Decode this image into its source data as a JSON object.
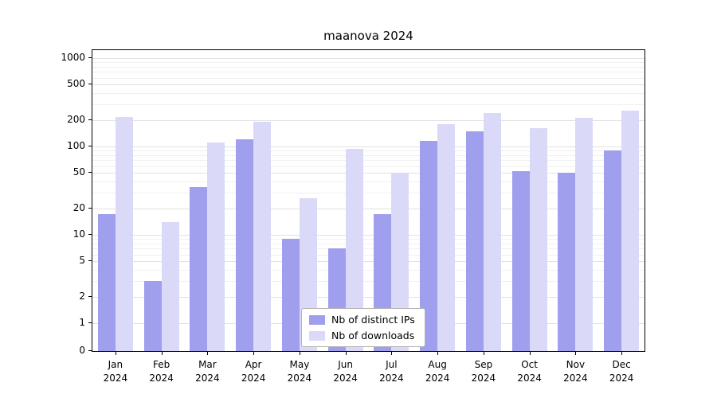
{
  "chart_data": {
    "type": "bar",
    "title": "maanova 2024",
    "categories": [
      "Jan 2024",
      "Feb 2024",
      "Mar 2024",
      "Apr 2024",
      "May 2024",
      "Jun 2024",
      "Jul 2024",
      "Aug 2024",
      "Sep 2024",
      "Oct 2024",
      "Nov 2024",
      "Dec 2024"
    ],
    "series": [
      {
        "name": "Nb of distinct IPs",
        "color": "#9f9fee",
        "values": [
          17,
          3,
          35,
          120,
          9,
          7,
          17,
          115,
          150,
          53,
          50,
          90
        ]
      },
      {
        "name": "Nb of downloads",
        "color": "#dadaf8",
        "values": [
          215,
          14,
          110,
          190,
          26,
          95,
          51,
          180,
          240,
          160,
          210,
          255
        ]
      }
    ],
    "xlabel": "",
    "ylabel": "",
    "yscale": "log",
    "ylim": [
      0,
      1000
    ],
    "yticks": [
      0,
      1,
      2,
      5,
      10,
      20,
      50,
      100,
      200,
      500,
      1000
    ],
    "yticks_minor": [
      3,
      4,
      6,
      7,
      8,
      9,
      30,
      40,
      60,
      70,
      80,
      90,
      300,
      400,
      600,
      700,
      800,
      900
    ],
    "grid": true,
    "legend": {
      "position": "bottom-center-inside",
      "entries": [
        "Nb of distinct IPs",
        "Nb of downloads"
      ]
    }
  }
}
